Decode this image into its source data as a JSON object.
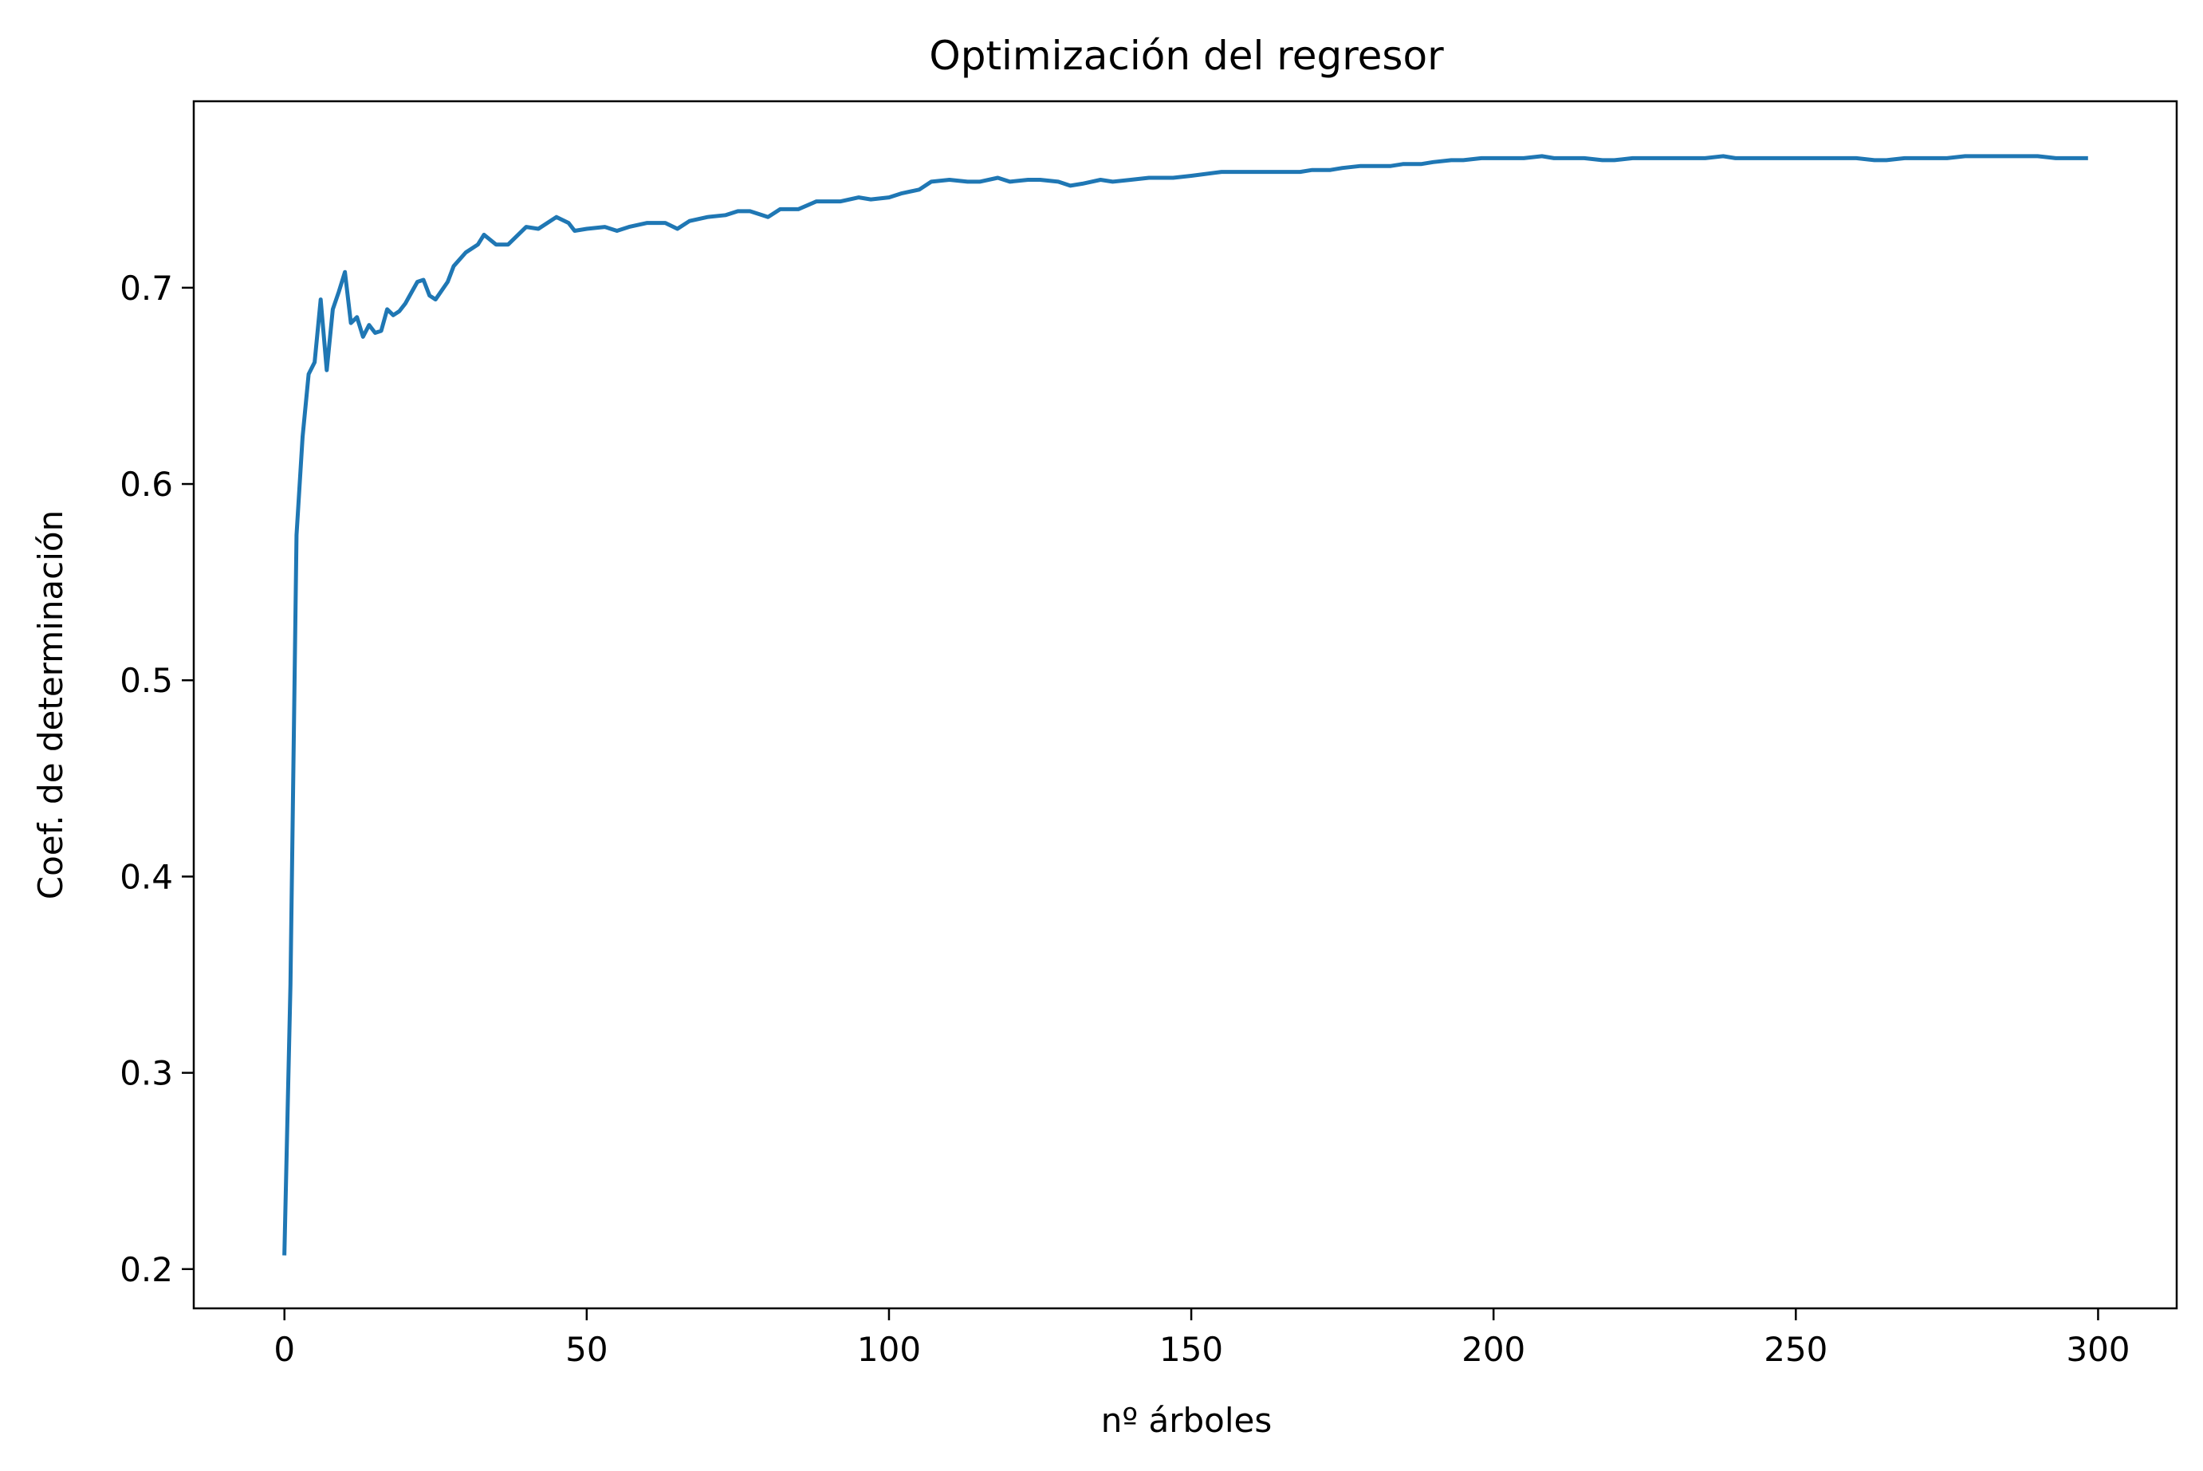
{
  "chart_data": {
    "type": "line",
    "title": "Optimización del regresor",
    "xlabel": "nº árboles",
    "ylabel": "Coef. de determinación",
    "xlim": [
      -15,
      313
    ],
    "ylim": [
      0.18,
      0.795
    ],
    "xticks": [
      0,
      50,
      100,
      150,
      200,
      250,
      300
    ],
    "yticks": [
      0.2,
      0.3,
      0.4,
      0.5,
      0.6,
      0.7
    ],
    "ytick_labels": [
      "0.2",
      "0.3",
      "0.4",
      "0.5",
      "0.6",
      "0.7"
    ],
    "grid": false,
    "series": [
      {
        "color": "#1f77b4",
        "x": [
          0,
          1,
          2,
          3,
          4,
          5,
          6,
          7,
          8,
          9,
          10,
          11,
          12,
          13,
          14,
          15,
          16,
          17,
          18,
          19,
          20,
          22,
          23,
          24,
          25,
          27,
          28,
          30,
          32,
          33,
          35,
          37,
          40,
          42,
          45,
          47,
          48,
          50,
          53,
          55,
          57,
          60,
          63,
          65,
          67,
          70,
          73,
          75,
          77,
          79,
          80,
          82,
          85,
          88,
          90,
          92,
          95,
          97,
          100,
          102,
          105,
          107,
          110,
          113,
          115,
          118,
          120,
          123,
          125,
          128,
          130,
          132,
          135,
          137,
          140,
          143,
          145,
          147,
          150,
          155,
          158,
          160,
          163,
          165,
          168,
          170,
          173,
          175,
          178,
          180,
          183,
          185,
          188,
          190,
          193,
          195,
          198,
          200,
          203,
          205,
          208,
          210,
          213,
          215,
          218,
          220,
          223,
          225,
          228,
          230,
          233,
          235,
          238,
          240,
          243,
          245,
          248,
          250,
          253,
          255,
          258,
          260,
          263,
          265,
          268,
          270,
          273,
          275,
          278,
          280,
          283,
          285,
          288,
          290,
          293,
          295,
          298
        ],
        "y": [
          0.208,
          0.345,
          0.574,
          0.624,
          0.656,
          0.662,
          0.694,
          0.658,
          0.689,
          0.698,
          0.708,
          0.682,
          0.685,
          0.675,
          0.681,
          0.677,
          0.678,
          0.689,
          0.686,
          0.688,
          0.692,
          0.703,
          0.704,
          0.696,
          0.694,
          0.703,
          0.711,
          0.718,
          0.722,
          0.727,
          0.722,
          0.722,
          0.731,
          0.73,
          0.736,
          0.733,
          0.729,
          0.73,
          0.731,
          0.729,
          0.731,
          0.733,
          0.733,
          0.73,
          0.734,
          0.736,
          0.737,
          0.739,
          0.739,
          0.737,
          0.736,
          0.74,
          0.74,
          0.744,
          0.744,
          0.744,
          0.746,
          0.745,
          0.746,
          0.748,
          0.75,
          0.754,
          0.755,
          0.754,
          0.754,
          0.756,
          0.754,
          0.755,
          0.755,
          0.754,
          0.752,
          0.753,
          0.755,
          0.754,
          0.755,
          0.756,
          0.756,
          0.756,
          0.757,
          0.759,
          0.759,
          0.759,
          0.759,
          0.759,
          0.759,
          0.76,
          0.76,
          0.761,
          0.762,
          0.762,
          0.762,
          0.763,
          0.763,
          0.764,
          0.765,
          0.765,
          0.766,
          0.766,
          0.766,
          0.766,
          0.767,
          0.766,
          0.766,
          0.766,
          0.765,
          0.765,
          0.766,
          0.766,
          0.766,
          0.766,
          0.766,
          0.766,
          0.767,
          0.766,
          0.766,
          0.766,
          0.766,
          0.766,
          0.766,
          0.766,
          0.766,
          0.766,
          0.765,
          0.765,
          0.766,
          0.766,
          0.766,
          0.766,
          0.767,
          0.767,
          0.767,
          0.767,
          0.767,
          0.767,
          0.766,
          0.766,
          0.766
        ]
      }
    ]
  }
}
